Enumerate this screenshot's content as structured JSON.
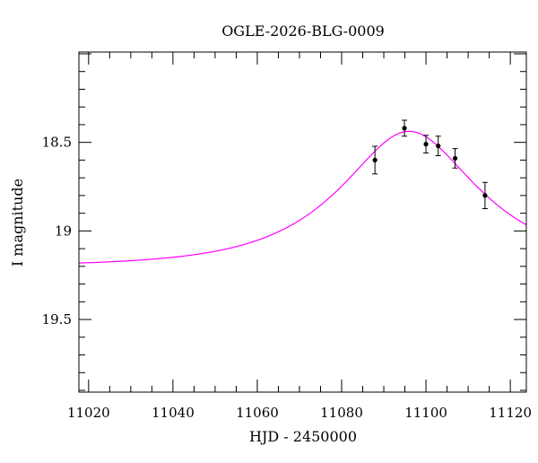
{
  "chart_data": {
    "type": "scatter",
    "title": "OGLE-2026-BLG-0009",
    "xlabel": "HJD - 2450000",
    "ylabel": "I magnitude",
    "xlim": [
      11017.7,
      11123.8
    ],
    "ylim": [
      19.91,
      17.99
    ],
    "y_inverted": true,
    "x_ticks": [
      11020,
      11040,
      11060,
      11080,
      11100,
      11120
    ],
    "x_tick_labels": [
      "11020",
      "11040",
      "11060",
      "11080",
      "11100",
      "11120"
    ],
    "y_ticks": [
      18.5,
      19,
      19.5
    ],
    "y_tick_labels": [
      "18.5",
      "19",
      "19.5"
    ],
    "grid": false,
    "series": [
      {
        "name": "data",
        "type": "scatter",
        "color": "#000000",
        "x": [
          11087.9,
          11094.9,
          11100.0,
          11102.9,
          11106.9,
          11114.0
        ],
        "y": [
          18.6,
          18.42,
          18.51,
          18.52,
          18.59,
          18.8
        ],
        "yerr": [
          0.078,
          0.045,
          0.05,
          0.055,
          0.055,
          0.074
        ]
      },
      {
        "name": "model",
        "type": "line",
        "color": "#ff00ff",
        "model": "paczynski",
        "t0": 11096,
        "tE": 26.8,
        "u0": 0.55,
        "baseline_mag": 19.2
      }
    ]
  }
}
